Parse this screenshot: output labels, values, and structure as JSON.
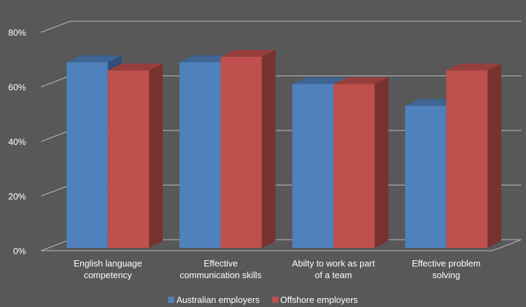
{
  "chart_data": {
    "type": "bar",
    "title": "",
    "xlabel": "",
    "ylabel": "",
    "categories": [
      [
        "English language",
        "competency"
      ],
      [
        "Effective",
        "communication skills"
      ],
      [
        "Abilty to work as part",
        "of a team"
      ],
      [
        "Effective problem",
        "solving"
      ]
    ],
    "series": [
      {
        "name": "Australian employers",
        "values": [
          68,
          68,
          60,
          52
        ],
        "color": "#4F81BD"
      },
      {
        "name": "Offshore employers",
        "values": [
          65,
          70,
          60,
          65
        ],
        "color": "#C0504D"
      }
    ],
    "ylim": [
      0,
      80
    ],
    "yticks": [
      "0%",
      "20%",
      "40%",
      "60%",
      "80%"
    ],
    "grid": true,
    "style": "3d-clustered-column",
    "legend_position": "bottom"
  }
}
